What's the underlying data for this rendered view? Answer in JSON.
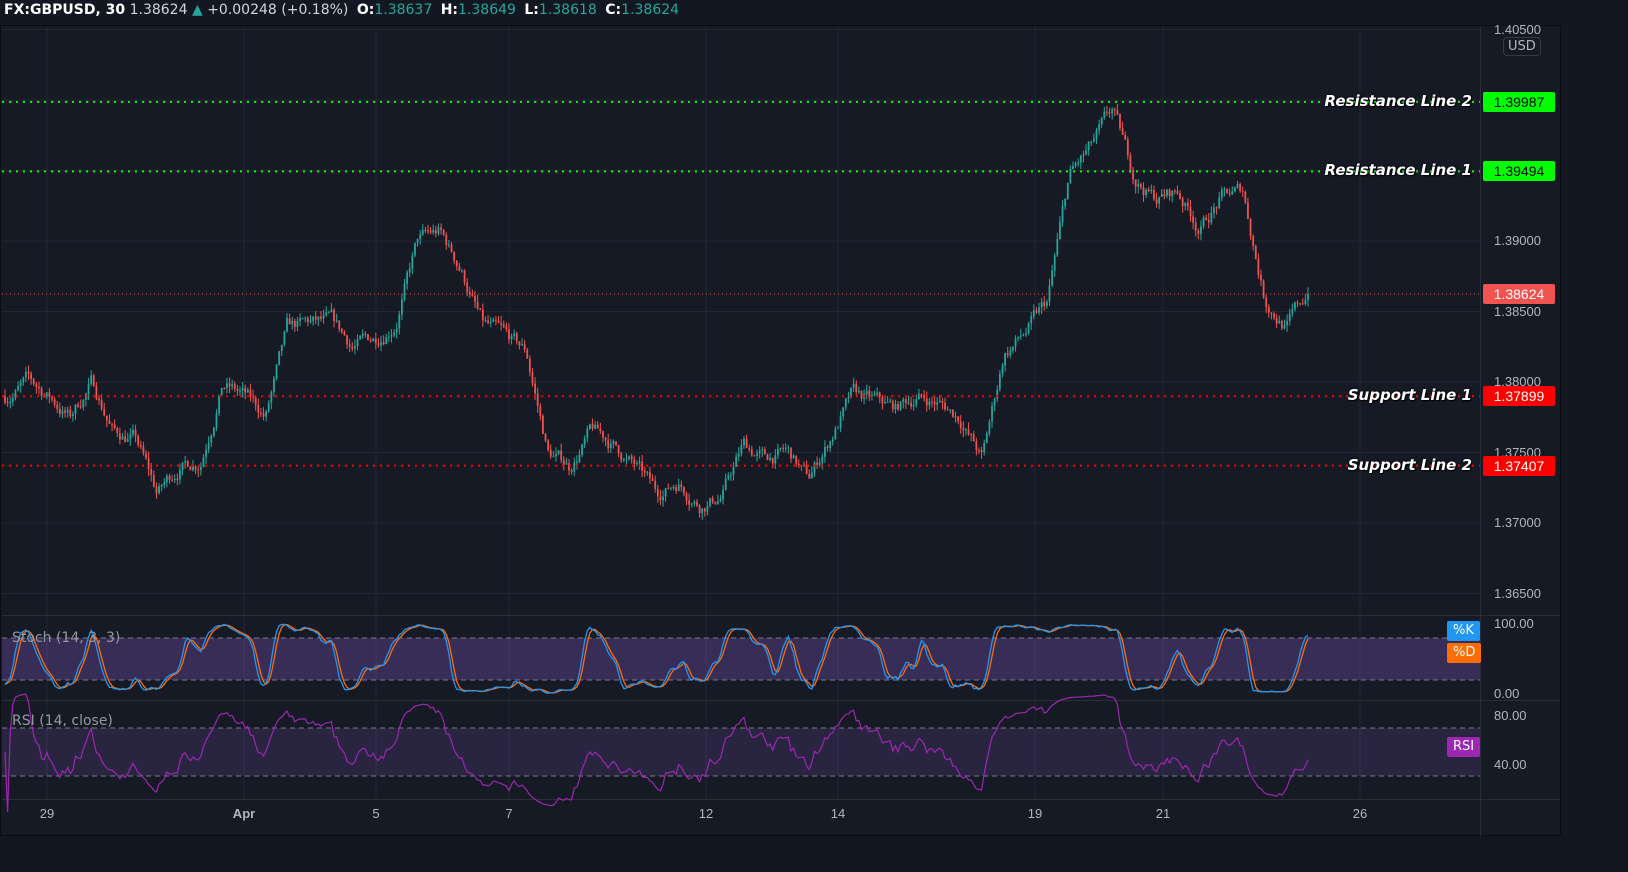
{
  "header": {
    "symbol": "FX:GBPUSD, 30",
    "last": "1.38624",
    "change_arrow": "▲",
    "change": "+0.00248 (+0.18%)",
    "open_label": "O:",
    "open": "1.38637",
    "high_label": "H:",
    "high": "1.38649",
    "low_label": "L:",
    "low": "1.38618",
    "close_label": "C:",
    "close": "1.38624"
  },
  "price_axis": {
    "currency": "USD",
    "ticks": [
      "1.40500",
      "1.39000",
      "1.38500",
      "1.38000",
      "1.37500",
      "1.37000",
      "1.36500"
    ],
    "tick_values": [
      1.405,
      1.39,
      1.385,
      1.38,
      1.375,
      1.37,
      1.365
    ],
    "current_price_tag": "1.38624",
    "current_price": 1.38624
  },
  "levels": [
    {
      "name": "Resistance Line 2",
      "value": 1.39987,
      "tag": "1.39987",
      "color": "#00ff00",
      "text_color": "#000000"
    },
    {
      "name": "Resistance Line 1",
      "value": 1.39494,
      "tag": "1.39494",
      "color": "#00ff00",
      "text_color": "#000000"
    },
    {
      "name": "Support Line 1",
      "value": 1.37899,
      "tag": "1.37899",
      "color": "#ff0000",
      "text_color": "#ffffff"
    },
    {
      "name": "Support Line 2",
      "value": 1.37407,
      "tag": "1.37407",
      "color": "#ff0000",
      "text_color": "#ffffff"
    }
  ],
  "time_axis": [
    "29",
    "Apr",
    "5",
    "7",
    "12",
    "14",
    "19",
    "21",
    "26"
  ],
  "stoch": {
    "label": "Stoch (14, 3, 3)",
    "k_tag": "%K",
    "d_tag": "%D",
    "k_color": "#2196f3",
    "d_color": "#ff6d00",
    "ticks": [
      "100.00",
      "0.00"
    ],
    "upper_band": 80,
    "lower_band": 20
  },
  "rsi": {
    "label": "RSI (14, close)",
    "tag": "RSI",
    "color": "#9c27b0",
    "ticks": [
      "80.00",
      "40.00"
    ],
    "upper_band": 70,
    "lower_band": 30
  },
  "colors": {
    "up": "#26a69a",
    "down": "#ef5350",
    "current_price": "#f05350"
  },
  "chart_data": {
    "type": "candlestick",
    "symbol": "FX:GBPUSD",
    "interval": "30",
    "ylim": [
      1.3635,
      1.4055
    ],
    "price_path": [
      1.379,
      1.38,
      1.379,
      1.3775,
      1.38,
      1.3765,
      1.376,
      1.372,
      1.374,
      1.3745,
      1.38,
      1.379,
      1.3775,
      1.3835,
      1.384,
      1.384,
      1.3825,
      1.383,
      1.3845,
      1.39,
      1.3905,
      1.388,
      1.384,
      1.383,
      1.382,
      1.375,
      1.374,
      1.3765,
      1.3755,
      1.374,
      1.372,
      1.373,
      1.3715,
      1.372,
      1.3755,
      1.3745,
      1.375,
      1.373,
      1.376,
      1.379,
      1.3785,
      1.378,
      1.379,
      1.3785,
      1.3775,
      1.3745,
      1.382,
      1.3835,
      1.3855,
      1.3945,
      1.3965,
      1.399,
      1.3945,
      1.393,
      1.3935,
      1.391,
      1.393,
      1.3935,
      1.386,
      1.384,
      1.38624
    ]
  }
}
